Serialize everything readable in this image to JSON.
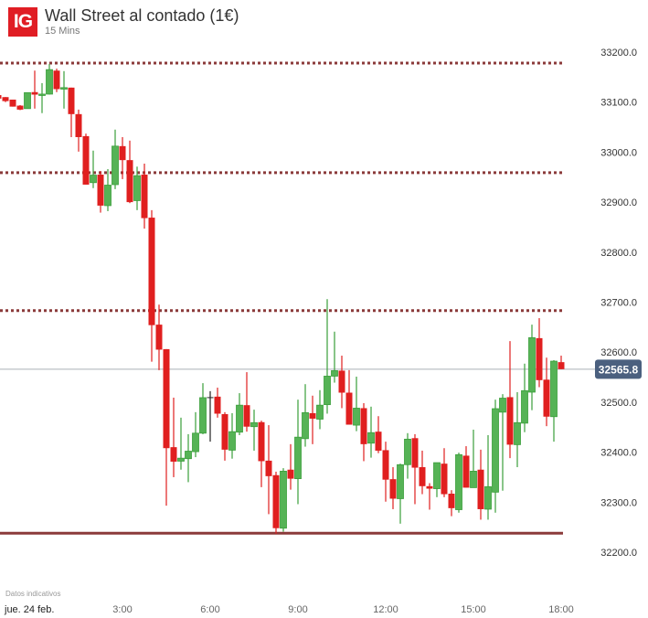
{
  "header": {
    "logo_text": "IG",
    "title": "Wall Street al contado (1€)",
    "interval": "15 Mins"
  },
  "footer": {
    "note": "Datos indicativos"
  },
  "colors": {
    "up": "#56b356",
    "up_border": "#3a9e3a",
    "down": "#e01f1f",
    "doji": "#222222",
    "level": "#8b3a3a",
    "price_line": "#aab0b8",
    "price_tag": "#4b607f",
    "brand": "#e01d24"
  },
  "chart_data": {
    "type": "candlestick",
    "title": "Wall Street al contado (1€)",
    "interval_minutes": 15,
    "first_candle_time": "22:45",
    "ylim": [
      32200,
      33200
    ],
    "y_ticks": [
      "33200.0",
      "33100.0",
      "33000.0",
      "32900.0",
      "32800.0",
      "32700.0",
      "32600.0",
      "32500.0",
      "32400.0",
      "32300.0",
      "32200.0"
    ],
    "y_tick_values": [
      33200,
      33100,
      33000,
      32900,
      32800,
      32700,
      32600,
      32500,
      32400,
      32300,
      32200
    ],
    "x_ticks": [
      {
        "label": "jue. 24 feb.",
        "index": 5
      },
      {
        "label": "3:00",
        "index": 17
      },
      {
        "label": "6:00",
        "index": 29
      },
      {
        "label": "9:00",
        "index": 41
      },
      {
        "label": "12:00",
        "index": 53
      },
      {
        "label": "15:00",
        "index": 65
      },
      {
        "label": "18:00",
        "index": 77
      }
    ],
    "current_price": "32565.8",
    "current_price_value": 32565.8,
    "levels": [
      {
        "price": 33178,
        "style": "dotted"
      },
      {
        "price": 32959,
        "style": "dotted"
      },
      {
        "price": 32683,
        "style": "dotted"
      },
      {
        "price": 32238,
        "style": "solid"
      }
    ],
    "ohlc_fields": [
      "open",
      "high",
      "low",
      "close"
    ],
    "candles": [
      [
        33114,
        33116,
        33105,
        33107
      ],
      [
        33110,
        33110,
        33100,
        33102
      ],
      [
        33105,
        33105,
        33091,
        33091
      ],
      [
        33093,
        33094,
        33084,
        33085
      ],
      [
        33087,
        33119,
        33087,
        33119
      ],
      [
        33120,
        33163,
        33087,
        33115
      ],
      [
        33115,
        33138,
        33078,
        33116
      ],
      [
        33116,
        33176,
        33115,
        33165
      ],
      [
        33163,
        33167,
        33120,
        33126
      ],
      [
        33126,
        33162,
        33087,
        33129
      ],
      [
        33129,
        33129,
        33030,
        33076
      ],
      [
        33076,
        33085,
        33001,
        33030
      ],
      [
        33032,
        33037,
        32935,
        32935
      ],
      [
        32939,
        33003,
        32928,
        32954
      ],
      [
        32955,
        32962,
        32879,
        32893
      ],
      [
        32893,
        32966,
        32882,
        32934
      ],
      [
        32935,
        33045,
        32926,
        33012
      ],
      [
        33012,
        33030,
        32946,
        32984
      ],
      [
        32984,
        33023,
        32898,
        32900
      ],
      [
        32903,
        32971,
        32884,
        32953
      ],
      [
        32955,
        32977,
        32847,
        32868
      ],
      [
        32869,
        32884,
        32581,
        32654
      ],
      [
        32655,
        32695,
        32564,
        32605
      ],
      [
        32606,
        32606,
        32293,
        32408
      ],
      [
        32410,
        32509,
        32350,
        32381
      ],
      [
        32382,
        32469,
        32365,
        32388
      ],
      [
        32387,
        32436,
        32340,
        32402
      ],
      [
        32401,
        32480,
        32390,
        32438
      ],
      [
        32438,
        32538,
        32436,
        32509
      ],
      [
        32510,
        32522,
        32421,
        32510
      ],
      [
        32511,
        32529,
        32469,
        32477
      ],
      [
        32476,
        32480,
        32383,
        32405
      ],
      [
        32404,
        32478,
        32387,
        32441
      ],
      [
        32440,
        32518,
        32434,
        32494
      ],
      [
        32494,
        32560,
        32441,
        32451
      ],
      [
        32451,
        32485,
        32403,
        32459
      ],
      [
        32460,
        32463,
        32330,
        32382
      ],
      [
        32383,
        32454,
        32276,
        32352
      ],
      [
        32354,
        32361,
        32237,
        32248
      ],
      [
        32248,
        32368,
        32241,
        32362
      ],
      [
        32365,
        32416,
        32325,
        32347
      ],
      [
        32347,
        32505,
        32296,
        32430
      ],
      [
        32427,
        32536,
        32411,
        32479
      ],
      [
        32478,
        32513,
        32416,
        32467
      ],
      [
        32466,
        32524,
        32446,
        32494
      ],
      [
        32495,
        32706,
        32477,
        32552
      ],
      [
        32552,
        32641,
        32539,
        32563
      ],
      [
        32563,
        32593,
        32488,
        32519
      ],
      [
        32519,
        32564,
        32455,
        32455
      ],
      [
        32454,
        32551,
        32442,
        32488
      ],
      [
        32488,
        32498,
        32382,
        32416
      ],
      [
        32418,
        32491,
        32389,
        32439
      ],
      [
        32441,
        32472,
        32398,
        32403
      ],
      [
        32404,
        32421,
        32301,
        32345
      ],
      [
        32346,
        32370,
        32286,
        32307
      ],
      [
        32307,
        32377,
        32257,
        32375
      ],
      [
        32375,
        32438,
        32347,
        32426
      ],
      [
        32428,
        32436,
        32296,
        32369
      ],
      [
        32370,
        32403,
        32316,
        32332
      ],
      [
        32332,
        32338,
        32285,
        32327
      ],
      [
        32327,
        32379,
        32310,
        32379
      ],
      [
        32377,
        32408,
        32310,
        32316
      ],
      [
        32317,
        32324,
        32272,
        32288
      ],
      [
        32285,
        32399,
        32279,
        32395
      ],
      [
        32393,
        32412,
        32329,
        32329
      ],
      [
        32329,
        32445,
        32329,
        32362
      ],
      [
        32365,
        32405,
        32265,
        32286
      ],
      [
        32286,
        32434,
        32265,
        32331
      ],
      [
        32320,
        32505,
        32279,
        32487
      ],
      [
        32480,
        32516,
        32323,
        32508
      ],
      [
        32510,
        32622,
        32388,
        32415
      ],
      [
        32415,
        32520,
        32370,
        32459
      ],
      [
        32458,
        32577,
        32440,
        32523
      ],
      [
        32520,
        32655,
        32484,
        32629
      ],
      [
        32628,
        32668,
        32530,
        32544
      ],
      [
        32545,
        32589,
        32452,
        32471
      ],
      [
        32471,
        32584,
        32421,
        32582
      ],
      [
        32580,
        32593,
        32566,
        32566
      ]
    ]
  }
}
